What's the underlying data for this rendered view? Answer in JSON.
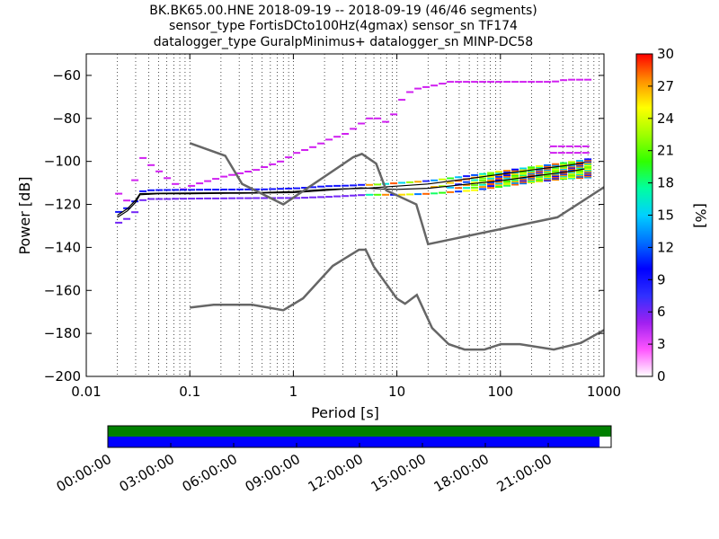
{
  "title_lines": [
    "BK.BK65.00.HNE   2018-09-19 -- 2018-09-19  (46/46 segments)",
    "sensor_type FortisDCto100Hz(4gmax) sensor_sn TF174",
    "datalogger_type GuralpMinimus+ datalogger_sn MINP-DC58"
  ],
  "chart_data": {
    "type": "heatmap",
    "xlabel": "Period [s]",
    "ylabel": "Power [dB]",
    "x_scale": "log",
    "xlim": [
      0.01,
      1000
    ],
    "ylim": [
      -200,
      -50
    ],
    "x_ticks": [
      0.01,
      0.1,
      1,
      10,
      100,
      1000
    ],
    "x_tick_labels": [
      "0.01",
      "0.1",
      "1",
      "10",
      "100",
      "1000"
    ],
    "y_ticks": [
      -200,
      -180,
      -160,
      -140,
      -120,
      -100,
      -80,
      -60
    ],
    "y_tick_labels": [
      "−200",
      "−180",
      "−160",
      "−140",
      "−120",
      "−100",
      "−80",
      "−60"
    ],
    "grid": "x-minor-dotted",
    "colorbar": {
      "label": "[%]",
      "range": [
        0,
        30
      ],
      "ticks": [
        0,
        3,
        6,
        9,
        12,
        15,
        18,
        21,
        24,
        27,
        30
      ],
      "colors": [
        "#ffffff",
        "#ff55ff",
        "#a020f0",
        "#3030ff",
        "#0000ff",
        "#0070ff",
        "#00d0ff",
        "#00ffa0",
        "#30ff00",
        "#a0ff00",
        "#ffff00",
        "#ff9000",
        "#ff0000"
      ]
    },
    "noise_models": [
      {
        "name": "NHNM",
        "x": [
          0.1,
          0.22,
          0.32,
          0.8,
          3.8,
          4.6,
          6.3,
          7.9,
          15.4,
          20,
          354.8,
          1000
        ],
        "y": [
          -91.5,
          -97.4,
          -110.5,
          -120,
          -98,
          -96.5,
          -101,
          -113.5,
          -120,
          -138.5,
          -126,
          -112
        ]
      },
      {
        "name": "NLNM",
        "x": [
          0.1,
          0.17,
          0.4,
          0.8,
          1.24,
          2.4,
          4.3,
          5,
          6,
          10,
          12,
          15.6,
          21.9,
          31.6,
          45,
          70,
          101,
          154,
          328,
          600,
          1000
        ],
        "y": [
          -168,
          -166.7,
          -166.7,
          -169.2,
          -163.7,
          -148.6,
          -141.1,
          -141.1,
          -149,
          -163.8,
          -166.2,
          -162.1,
          -177.5,
          -185,
          -187.5,
          -187.5,
          -185,
          -185,
          -187.5,
          -184.4,
          -178.5
        ]
      }
    ],
    "ppsd_traces": [
      {
        "name": "mean",
        "x": [
          0.02,
          0.025,
          0.03,
          0.033,
          0.05,
          0.1,
          0.2,
          0.5,
          1,
          2,
          5,
          10,
          20,
          50,
          100,
          200,
          500,
          650
        ],
        "y": [
          -125,
          -122,
          -118,
          -115,
          -114.8,
          -114.7,
          -114.6,
          -114.5,
          -114,
          -113,
          -112.5,
          -111.5,
          -110.5,
          -108,
          -106,
          -104,
          -101.5,
          -100.5
        ]
      },
      {
        "name": "mode",
        "x": [
          0.02,
          0.025,
          0.03,
          0.033,
          0.05,
          0.1,
          0.3,
          1,
          2,
          4.5,
          7,
          10,
          20,
          50,
          100,
          200,
          500,
          650
        ],
        "y": [
          -126,
          -123,
          -119,
          -115.5,
          -115,
          -115,
          -114.8,
          -114.5,
          -113.5,
          -112.3,
          -112.8,
          -113,
          -112.5,
          -110.5,
          -109,
          -107,
          -104.5,
          -103.5
        ]
      },
      {
        "name": "high-percentile",
        "x": [
          0.02,
          0.022,
          0.026,
          0.03,
          0.032,
          0.035,
          0.045,
          0.06,
          0.08,
          0.1,
          0.2,
          0.4,
          0.7,
          1,
          1.5,
          2,
          3,
          4,
          5,
          6,
          7,
          8,
          9,
          10,
          12,
          15,
          20,
          30,
          50,
          100,
          200,
          300,
          400,
          600
        ],
        "y": [
          -115,
          -120,
          -111,
          -104,
          -98,
          -100,
          -104,
          -109,
          -113,
          -111,
          -107,
          -104,
          -100,
          -96,
          -93,
          -90,
          -87,
          -83,
          -80,
          -80,
          -82,
          -80,
          -77,
          -72,
          -68,
          -66,
          -65,
          -63,
          -63,
          -63,
          -63,
          -63,
          -62,
          -62
        ]
      },
      {
        "name": "low-percentile",
        "x": [
          0.02,
          0.025,
          0.03,
          0.033,
          0.05,
          0.1,
          0.3,
          1,
          2,
          5,
          10,
          20,
          50,
          100,
          200,
          400,
          650
        ],
        "y": [
          -127,
          -124,
          -120,
          -116,
          -116,
          -115.8,
          -115.6,
          -115.5,
          -115,
          -114,
          -114,
          -113.5,
          -112,
          -110,
          -108,
          -106.5,
          -106
        ]
      }
    ]
  },
  "timeline": {
    "tick_labels": [
      "00:00:00",
      "03:00:00",
      "06:00:00",
      "09:00:00",
      "12:00:00",
      "15:00:00",
      "18:00:00",
      "21:00:00"
    ],
    "bars": [
      {
        "name": "data-availability",
        "color": "#008000",
        "coverage": 1.0
      },
      {
        "name": "used-segments",
        "color": "#0000ff",
        "coverage": 0.977
      }
    ]
  }
}
